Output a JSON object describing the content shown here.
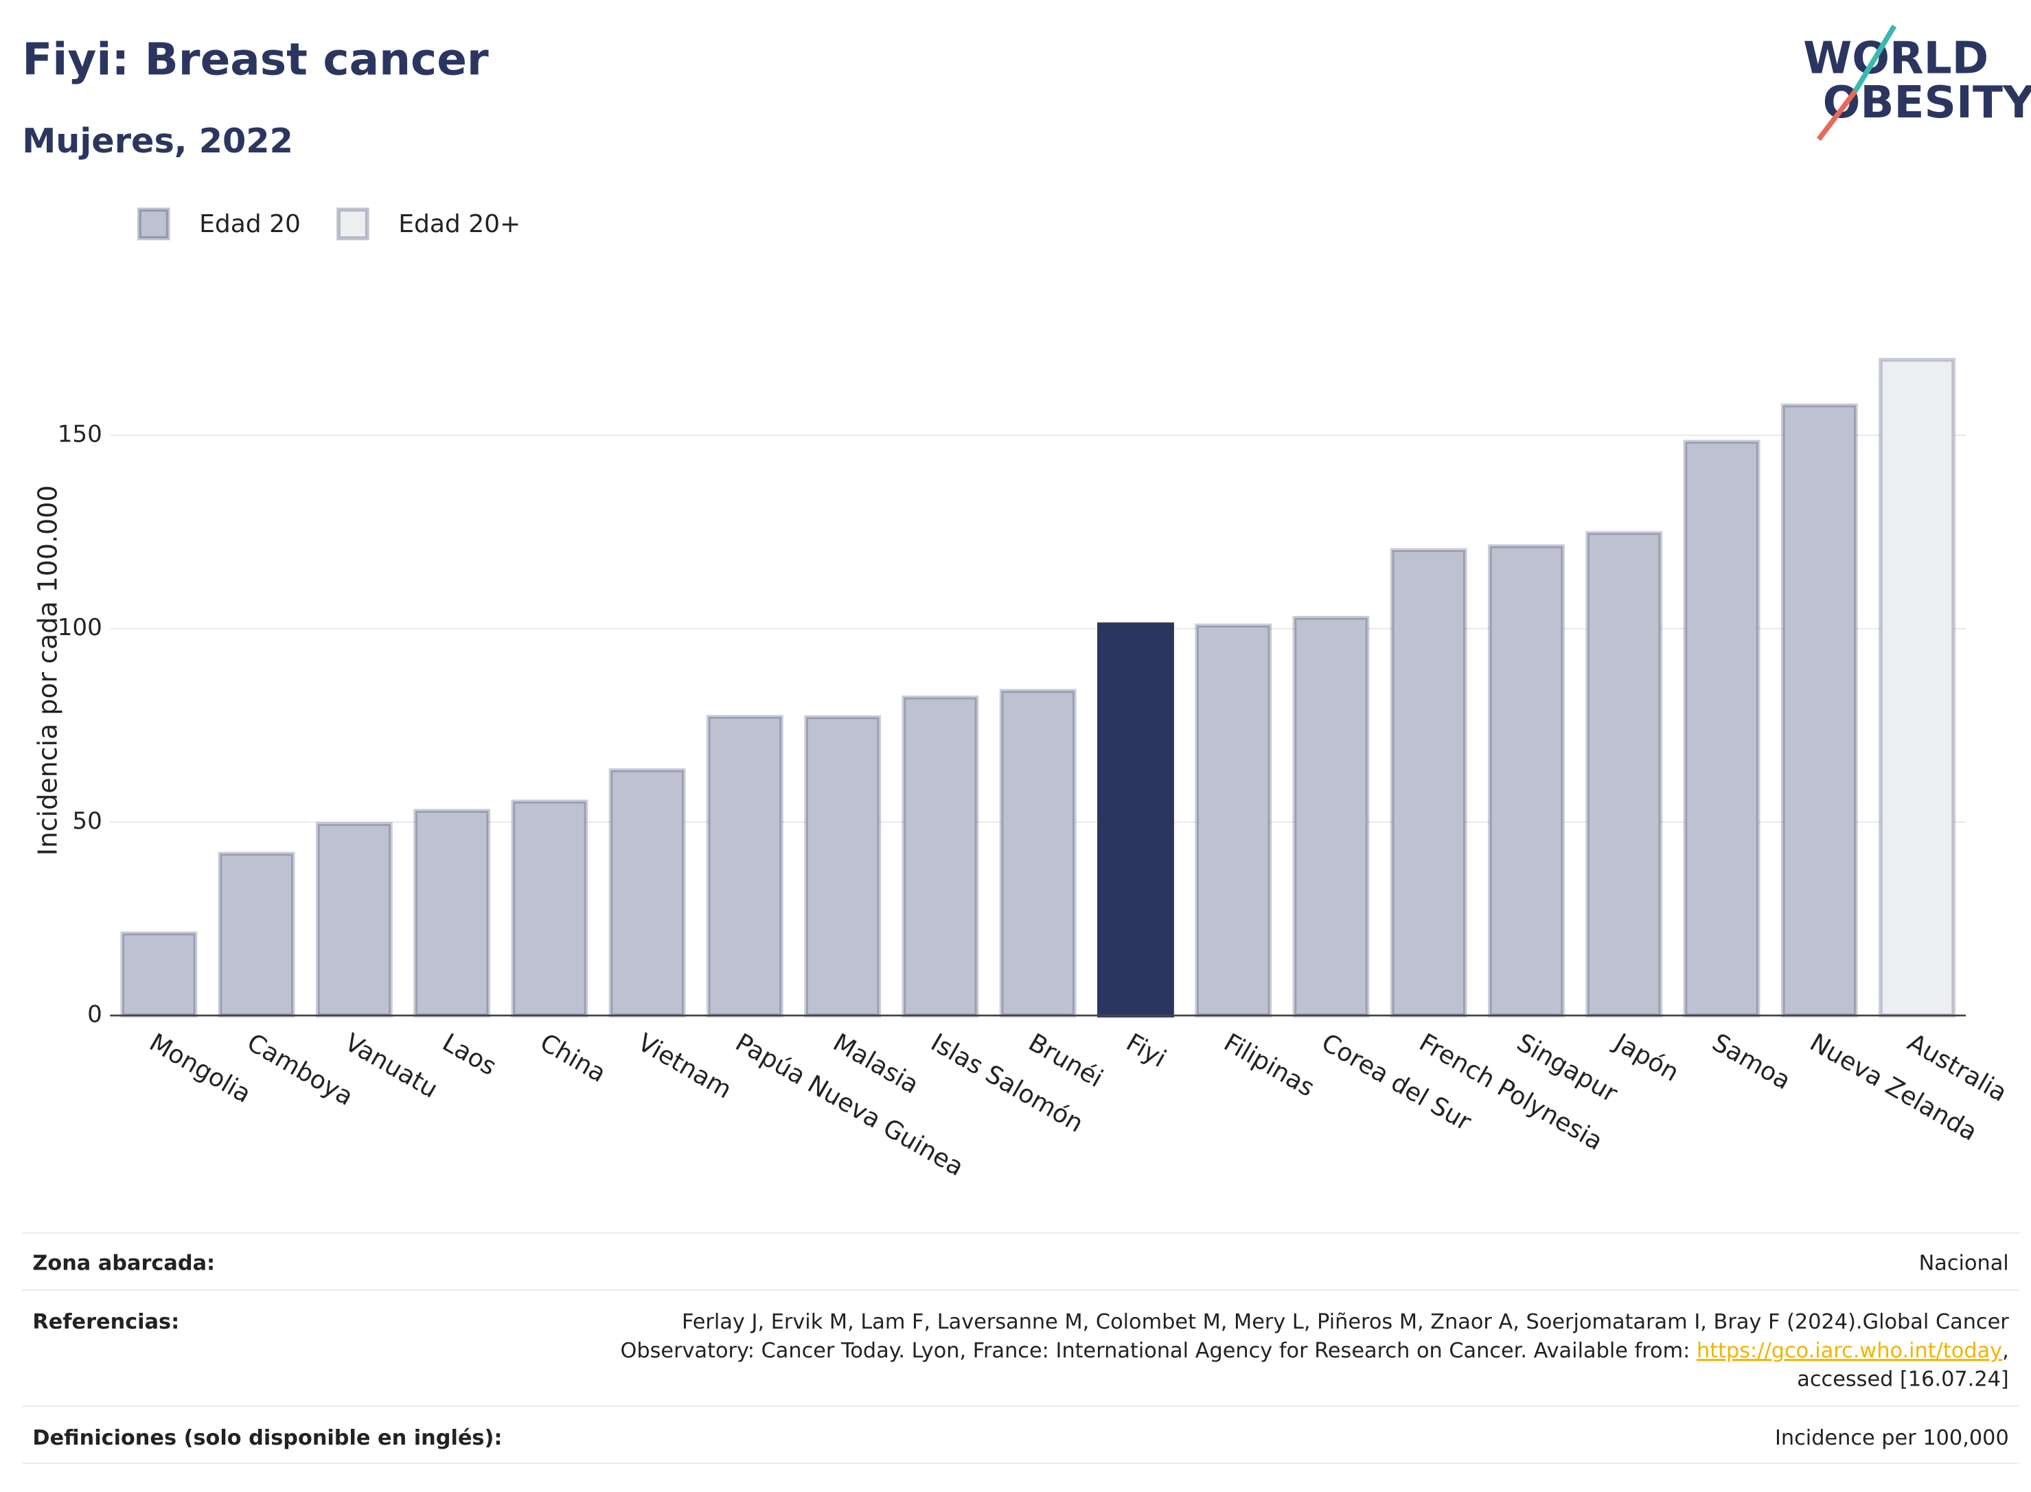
{
  "chart_data": {
    "type": "bar",
    "title": "Fiyi: Breast cancer",
    "subtitle": "Mujeres, 2022",
    "y_label": "Incidencia por cada 100.000",
    "categories": [
      "Mongolia",
      "Camboya",
      "Vanuatu",
      "Laos",
      "China",
      "Vietnam",
      "Papúa Nueva Guinea",
      "Malasia",
      "Islas Salomón",
      "Brunéi",
      "Fiyi",
      "Filipinas",
      "Corea del Sur",
      "French Polynesia",
      "Singapur",
      "Japón",
      "Samoa",
      "Nueva Zelanda",
      "Australia"
    ],
    "series": [
      {
        "name": "Edad 20",
        "color": "#bec1cf",
        "values": [
          21.2,
          41.8,
          49.5,
          52.9,
          55.3,
          63.4,
          77.2,
          77.1,
          82.2,
          83.9,
          101.1,
          100.8,
          102.8,
          120.3,
          121.3,
          124.7,
          148.3,
          157.7,
          null
        ]
      },
      {
        "name": "Edad 20+",
        "color": "#eceef2",
        "values": [
          null,
          null,
          null,
          null,
          null,
          null,
          null,
          null,
          null,
          null,
          null,
          null,
          null,
          null,
          null,
          null,
          null,
          null,
          169.5
        ]
      }
    ],
    "highlight": {
      "category": "Fiyi",
      "color": "#2b3660"
    },
    "ylim": [
      0,
      175
    ],
    "yticks": [
      0,
      50,
      100,
      150
    ],
    "grid": true,
    "legend": "top-left"
  },
  "logo": {
    "line1": "WORLD",
    "line2": "OBESITY"
  },
  "footer": {
    "coverage": {
      "label": "Zona abarcada:",
      "value": "Nacional"
    },
    "references": {
      "label": "Referencias:",
      "line1": "Ferlay J, Ervik M, Lam F, Laversanne M, Colombet M, Mery L, Piñeros M, Znaor A, Soerjomataram I, Bray F (2024).Global Cancer",
      "line2": "Observatory: Cancer Today. Lyon, France: International Agency for Research on Cancer. Available from: ",
      "link": "https://gco.iarc.who.int/today",
      "line2_end": ",",
      "line3": "accessed [16.07.24]"
    },
    "definitions": {
      "label": "Definiciones (solo disponible en inglés):",
      "value": "Incidence per 100,000"
    }
  }
}
